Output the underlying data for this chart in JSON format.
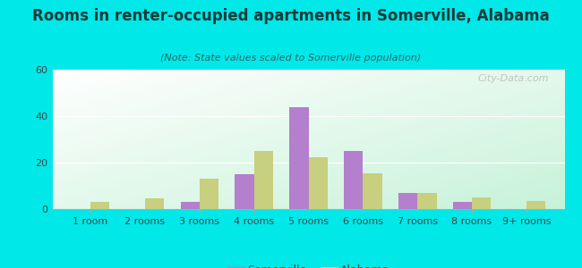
{
  "title": "Rooms in renter-occupied apartments in Somerville, Alabama",
  "subtitle": "(Note: State values scaled to Somerville population)",
  "categories": [
    "1 room",
    "2 rooms",
    "3 rooms",
    "4 rooms",
    "5 rooms",
    "6 rooms",
    "7 rooms",
    "8 rooms",
    "9+ rooms"
  ],
  "somerville": [
    0,
    0,
    3,
    15,
    44,
    25,
    7,
    3,
    0
  ],
  "alabama": [
    3,
    4.5,
    13,
    25,
    22.5,
    15.5,
    7,
    5,
    3.5
  ],
  "somerville_color": "#b47fcc",
  "alabama_color": "#c8cf7e",
  "background_outer": "#00e8e8",
  "ylim": [
    0,
    60
  ],
  "yticks": [
    0,
    20,
    40,
    60
  ],
  "bar_width": 0.35,
  "title_fontsize": 12,
  "subtitle_fontsize": 8,
  "tick_fontsize": 8,
  "legend_fontsize": 9,
  "watermark": "City-Data.com"
}
